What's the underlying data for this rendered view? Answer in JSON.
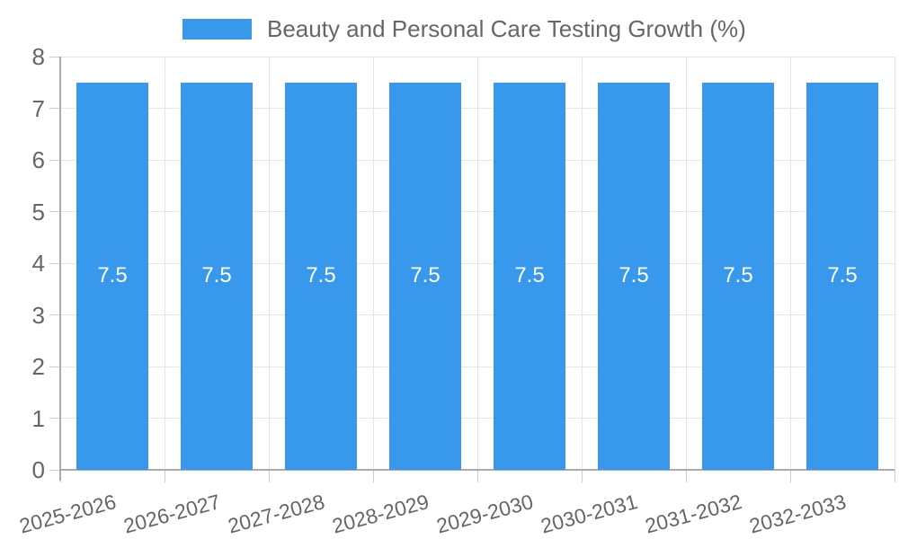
{
  "chart_data": {
    "type": "bar",
    "title": "Beauty and Personal Care Testing Growth (%)",
    "legend": [
      {
        "label": "Beauty and Personal Care Testing Growth (%)",
        "position": "top"
      }
    ],
    "categories": [
      "2025-2026",
      "2026-2027",
      "2027-2028",
      "2028-2029",
      "2029-2030",
      "2030-2031",
      "2031-2032",
      "2032-2033"
    ],
    "series": [
      {
        "name": "Beauty and Personal Care Testing Growth (%)",
        "values": [
          7.5,
          7.5,
          7.5,
          7.5,
          7.5,
          7.5,
          7.5,
          7.5
        ]
      }
    ],
    "bar_value_labels": [
      "7.5",
      "7.5",
      "7.5",
      "7.5",
      "7.5",
      "7.5",
      "7.5",
      "7.5"
    ],
    "xlabel": "",
    "ylabel": "",
    "ylim": [
      0,
      8
    ],
    "yticks": [
      0,
      1,
      2,
      3,
      4,
      5,
      6,
      7,
      8
    ],
    "grid": true,
    "x_label_rotation_deg": -15
  },
  "colors": {
    "bar": "#3899ec",
    "value_label": "#ffffff",
    "axis_text": "#666666",
    "title_text": "#666666",
    "grid_line": "#e6e6e6",
    "axis_line": "#aaaaaa",
    "tick_mark": "#cccccc",
    "background": "#ffffff"
  }
}
